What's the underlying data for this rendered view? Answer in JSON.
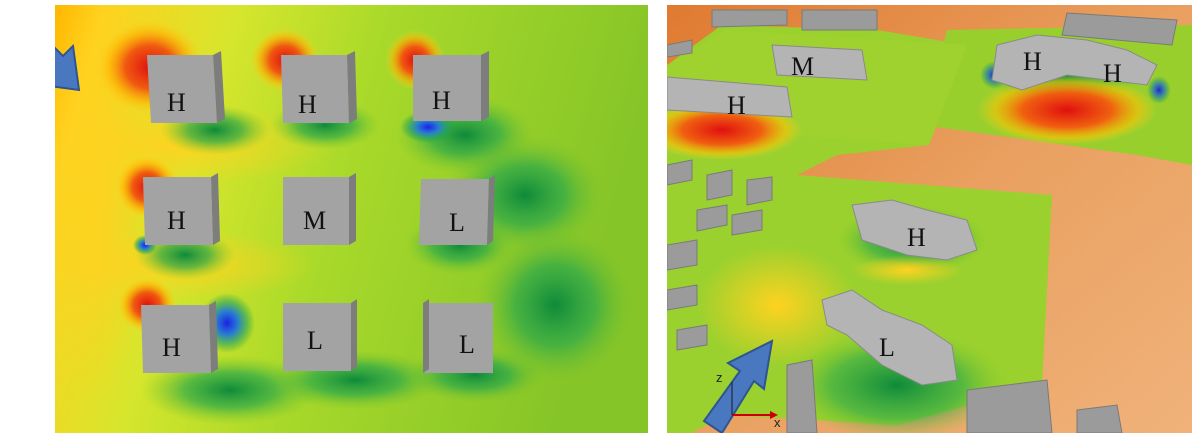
{
  "left_panel": {
    "wind_arrow_icon": "wind-direction-arrow",
    "buildings": [
      {
        "label": "H"
      },
      {
        "label": "H"
      },
      {
        "label": "H"
      },
      {
        "label": "H"
      },
      {
        "label": "M"
      },
      {
        "label": "L"
      },
      {
        "label": "H"
      },
      {
        "label": "L"
      },
      {
        "label": "L"
      }
    ]
  },
  "right_panel": {
    "wind_arrow_icon": "wind-direction-arrow",
    "labels": [
      {
        "text": "M"
      },
      {
        "text": "H"
      },
      {
        "text": "H"
      },
      {
        "text": "H"
      },
      {
        "text": "H"
      },
      {
        "text": "L"
      }
    ],
    "axes": {
      "x": "x",
      "z": "z"
    }
  },
  "colors": {
    "high": "#e41a1c",
    "medium_high": "#ffd21f",
    "medium": "#8fce1e",
    "low": "#1f9f3c",
    "very_low": "#2233ee",
    "building": "#9c9c9c",
    "ground": "#e89a55",
    "arrow": "#4a78c0"
  }
}
